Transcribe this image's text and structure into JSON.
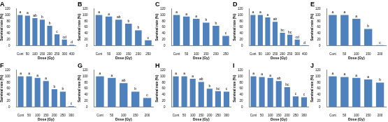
{
  "chart_data": [
    {
      "type": "bar",
      "title": "A",
      "x_label": "Dose (Gy)",
      "y_label": "Survival rate (%)",
      "categories": [
        "Cont",
        "50",
        "100",
        "150",
        "200",
        "250",
        "300",
        "400"
      ],
      "values": [
        100,
        98,
        90,
        85,
        65,
        37,
        20,
        3
      ],
      "annotations": [
        "a",
        "a",
        "ab",
        "b",
        "b",
        "c",
        "cd",
        "d"
      ],
      "color": "#4f81bd",
      "ylim": [
        0,
        120
      ],
      "yticks": [
        0,
        20,
        40,
        60,
        80,
        100,
        120
      ],
      "grid": false
    },
    {
      "type": "bar",
      "title": "B",
      "x_label": "Dose (Gy)",
      "y_label": "Survival rate (%)",
      "categories": [
        "Cont",
        "50",
        "100",
        "150",
        "200",
        "250"
      ],
      "values": [
        100,
        95,
        85,
        72,
        50,
        18
      ],
      "annotations": [
        "a",
        "a",
        "ab",
        "b",
        "b",
        "c"
      ],
      "color": "#4f81bd",
      "ylim": [
        0,
        120
      ],
      "yticks": [
        0,
        20,
        40,
        60,
        80,
        100,
        120
      ],
      "grid": false
    },
    {
      "type": "bar",
      "title": "C",
      "x_label": "Dose (Gy)",
      "y_label": "Survival rate (%)",
      "categories": [
        "Cont",
        "50",
        "100",
        "150",
        "200",
        "250"
      ],
      "values": [
        100,
        95,
        88,
        75,
        65,
        32
      ],
      "annotations": [
        "a",
        "a",
        "a",
        "b",
        "b",
        "c"
      ],
      "color": "#4f81bd",
      "ylim": [
        0,
        120
      ],
      "yticks": [
        0,
        20,
        40,
        60,
        80,
        100,
        120
      ],
      "grid": false
    },
    {
      "type": "bar",
      "title": "D",
      "x_label": "Dose (Gy)",
      "y_label": "Survival rate (%)",
      "categories": [
        "Cont",
        "50",
        "100",
        "150",
        "200",
        "250",
        "300",
        "400"
      ],
      "values": [
        100,
        100,
        92,
        78,
        42,
        36,
        20,
        2
      ],
      "annotations": [
        "a",
        "a",
        "a",
        "ab",
        "bc",
        "bc",
        "cd",
        "d"
      ],
      "color": "#4f81bd",
      "ylim": [
        0,
        120
      ],
      "yticks": [
        0,
        20,
        40,
        60,
        80,
        100,
        120
      ],
      "grid": false
    },
    {
      "type": "bar",
      "title": "E",
      "x_label": "Dose (Gy)",
      "y_label": "Survival rate (%)",
      "categories": [
        "Cont",
        "50",
        "100",
        "150",
        "200"
      ],
      "values": [
        100,
        100,
        88,
        55,
        2
      ],
      "annotations": [
        "a",
        "a",
        "a",
        "b",
        "c"
      ],
      "color": "#4f81bd",
      "ylim": [
        0,
        120
      ],
      "yticks": [
        0,
        20,
        40,
        60,
        80,
        100,
        120
      ],
      "grid": false
    },
    {
      "type": "bar",
      "title": "F",
      "x_label": "Dose (Gy)",
      "y_label": "Survival rate (%)",
      "categories": [
        "Cont",
        "50",
        "100",
        "150",
        "200",
        "250",
        "300"
      ],
      "values": [
        100,
        100,
        95,
        85,
        58,
        50,
        3
      ],
      "annotations": [
        "a",
        "a",
        "a",
        "a",
        "b",
        "b",
        "c"
      ],
      "color": "#4f81bd",
      "ylim": [
        0,
        120
      ],
      "yticks": [
        0,
        20,
        40,
        60,
        80,
        100,
        120
      ],
      "grid": false
    },
    {
      "type": "bar",
      "title": "G",
      "x_label": "Dose (Gy)",
      "y_label": "Survival rate (%)",
      "categories": [
        "Cont",
        "50",
        "100",
        "150",
        "200"
      ],
      "values": [
        100,
        95,
        78,
        50,
        30
      ],
      "annotations": [
        "a",
        "a",
        "ab",
        "b",
        "c"
      ],
      "color": "#4f81bd",
      "ylim": [
        0,
        120
      ],
      "yticks": [
        0,
        20,
        40,
        60,
        80,
        100,
        120
      ],
      "grid": false
    },
    {
      "type": "bar",
      "title": "H",
      "x_label": "Dose (Gy)",
      "y_label": "Survival rate (%)",
      "categories": [
        "Cont",
        "50",
        "100",
        "150",
        "200",
        "250",
        "300"
      ],
      "values": [
        100,
        100,
        92,
        82,
        60,
        52,
        50
      ],
      "annotations": [
        "a",
        "a",
        "a",
        "ab",
        "b",
        "bc",
        "c"
      ],
      "color": "#4f81bd",
      "ylim": [
        0,
        120
      ],
      "yticks": [
        0,
        20,
        40,
        60,
        80,
        100,
        120
      ],
      "grid": false
    },
    {
      "type": "bar",
      "title": "I",
      "x_label": "Dose (Gy)",
      "y_label": "Survival rate (%)",
      "categories": [
        "Cont",
        "50",
        "100",
        "150",
        "200",
        "250",
        "300"
      ],
      "values": [
        100,
        98,
        95,
        85,
        65,
        35,
        32
      ],
      "annotations": [
        "a",
        "a",
        "a",
        "ab",
        "bc",
        "c",
        "c"
      ],
      "color": "#4f81bd",
      "ylim": [
        0,
        120
      ],
      "yticks": [
        0,
        20,
        40,
        60,
        80,
        100,
        120
      ],
      "grid": false
    },
    {
      "type": "bar",
      "title": "J",
      "x_label": "Dose (Gy)",
      "y_label": "Survival rate (%)",
      "categories": [
        "Cont",
        "50",
        "100",
        "150",
        "200"
      ],
      "values": [
        100,
        98,
        95,
        90,
        80
      ],
      "annotations": [
        "a",
        "a",
        "a",
        "a",
        "b"
      ],
      "color": "#4f81bd",
      "ylim": [
        0,
        120
      ],
      "yticks": [
        0,
        20,
        40,
        60,
        80,
        100,
        120
      ],
      "grid": false
    }
  ]
}
